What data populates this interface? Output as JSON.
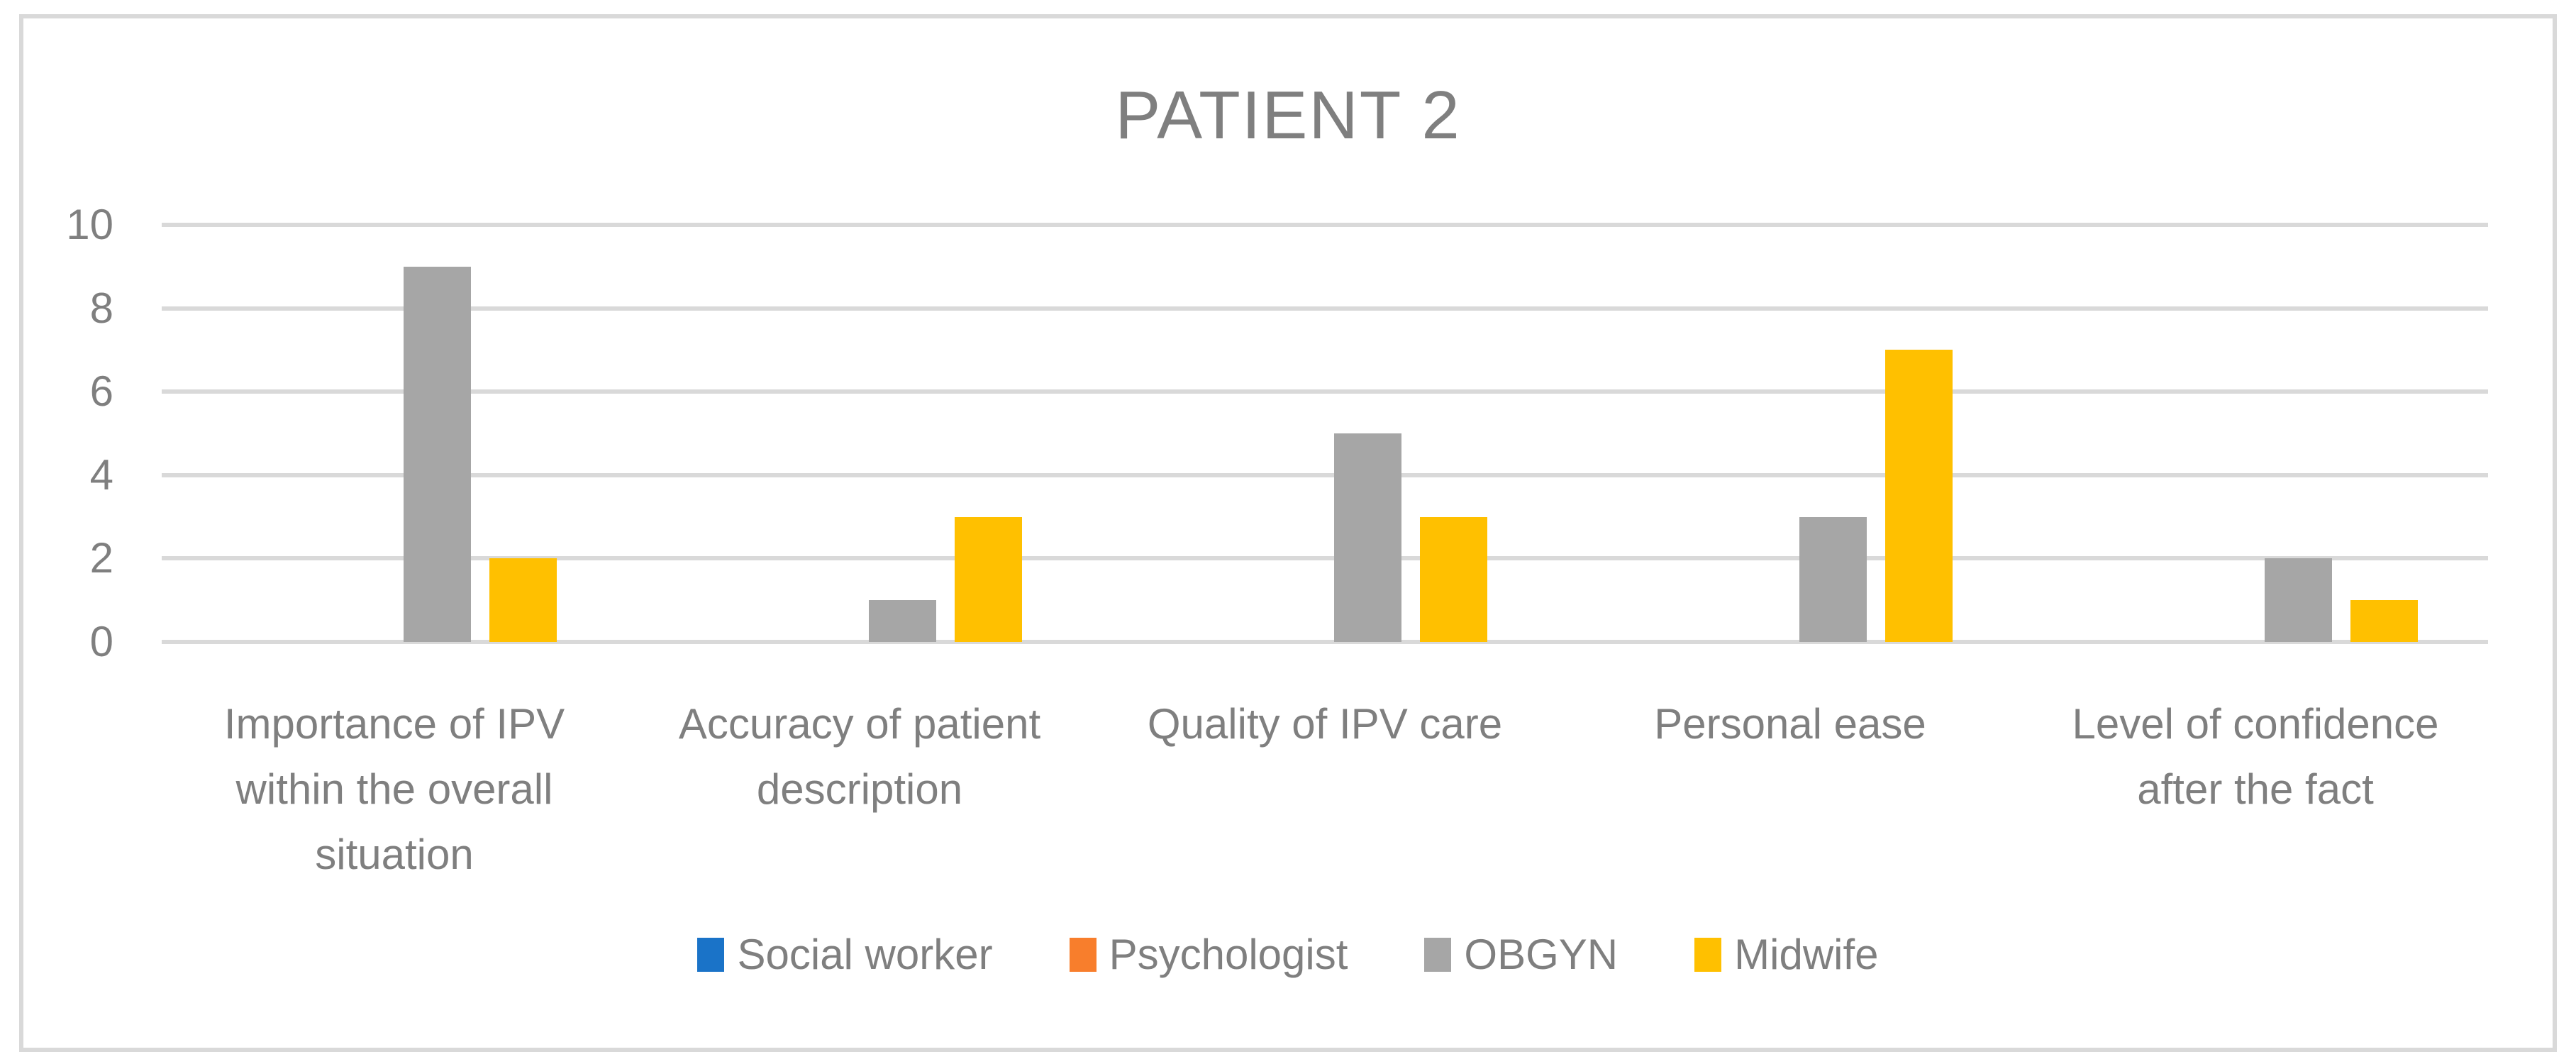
{
  "title": "PATIENT 2",
  "colors": {
    "social_worker": "#1a73c8",
    "psychologist": "#f87e2c",
    "obgyn": "#a6a6a6",
    "midwife": "#ffc000",
    "gridline": "#d9d9d9",
    "frame_border": "#d9d9d9",
    "text": "#7f7f7f",
    "background": "#ffffff"
  },
  "chart_data": {
    "type": "bar",
    "title": "PATIENT 2",
    "categories": [
      "Importance of IPV within the overall situation",
      "Accuracy of patient description",
      "Quality of IPV care",
      "Personal ease",
      "Level of confidence after the fact"
    ],
    "series": [
      {
        "name": "Social worker",
        "color_key": "social_worker",
        "values": [
          0,
          0,
          0,
          0,
          0
        ]
      },
      {
        "name": "Psychologist",
        "color_key": "psychologist",
        "values": [
          0,
          0,
          0,
          0,
          0
        ]
      },
      {
        "name": "OBGYN",
        "color_key": "obgyn",
        "values": [
          9,
          1,
          5,
          3,
          2
        ]
      },
      {
        "name": "Midwife",
        "color_key": "midwife",
        "values": [
          2,
          3,
          3,
          7,
          1
        ]
      }
    ],
    "y_ticks": [
      0,
      2,
      4,
      6,
      8,
      10
    ],
    "ylim": [
      0,
      10
    ],
    "xlabel": "",
    "ylabel": "",
    "grid": true,
    "legend_position": "bottom"
  }
}
